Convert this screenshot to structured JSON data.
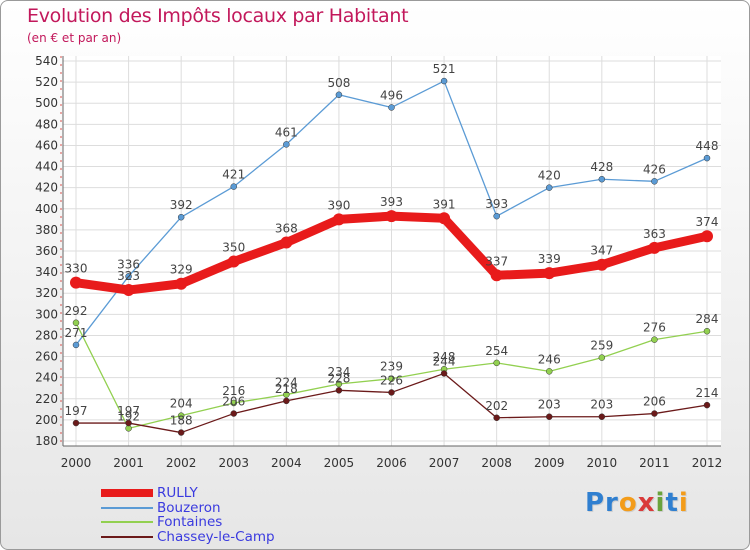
{
  "header": {
    "title": "Evolution des Impôts locaux par Habitant",
    "subtitle": "(en € et par an)"
  },
  "logo": {
    "text": "Proxiti"
  },
  "colors": {
    "rully": "#e81b1b",
    "bouzeron": "#5b9bd5",
    "fontaines": "#92d050",
    "chassey": "#6b1a1a",
    "title": "#c2185b",
    "legend_text": "#3a3adf"
  },
  "chart_data": {
    "type": "line",
    "title": "Evolution des Impôts locaux par Habitant",
    "subtitle": "(en € et par an)",
    "xlabel": "",
    "ylabel": "",
    "x": [
      "2000",
      "2001",
      "2002",
      "2003",
      "2004",
      "2005",
      "2006",
      "2007",
      "2008",
      "2009",
      "2010",
      "2011",
      "2012"
    ],
    "ylim": [
      180,
      540
    ],
    "yticks": [
      180,
      200,
      220,
      240,
      260,
      280,
      300,
      320,
      340,
      360,
      380,
      400,
      420,
      440,
      460,
      480,
      500,
      520,
      540
    ],
    "grid": true,
    "legend_position": "bottom-left",
    "series": [
      {
        "name": "RULLY",
        "color": "#e81b1b",
        "values": [
          330,
          323,
          329,
          350,
          368,
          390,
          393,
          391,
          337,
          339,
          347,
          363,
          374
        ]
      },
      {
        "name": "Bouzeron",
        "color": "#5b9bd5",
        "values": [
          271,
          336,
          392,
          421,
          461,
          508,
          496,
          521,
          393,
          420,
          428,
          426,
          448
        ]
      },
      {
        "name": "Fontaines",
        "color": "#92d050",
        "values": [
          292,
          192,
          204,
          216,
          224,
          234,
          239,
          248,
          254,
          246,
          259,
          276,
          284
        ]
      },
      {
        "name": "Chassey-le-Camp",
        "color": "#6b1a1a",
        "values": [
          197,
          197,
          188,
          206,
          218,
          228,
          226,
          244,
          202,
          203,
          203,
          206,
          214
        ]
      }
    ]
  }
}
